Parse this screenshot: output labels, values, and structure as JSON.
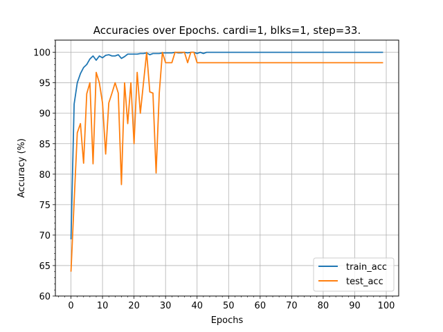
{
  "chart_data": {
    "type": "line",
    "title": "Accuracies over Epochs. cardi=1, blks=1, step=33.",
    "xlabel": "Epochs",
    "ylabel": "Accuracy (%)",
    "xlim": [
      -4.95,
      103.95
    ],
    "ylim": [
      60,
      102
    ],
    "xticks": [
      0,
      10,
      20,
      30,
      40,
      50,
      60,
      70,
      80,
      90,
      100
    ],
    "yticks": [
      60,
      65,
      70,
      75,
      80,
      85,
      90,
      95,
      100
    ],
    "grid": true,
    "legend_position": "lower right",
    "x": [
      0,
      1,
      2,
      3,
      4,
      5,
      6,
      7,
      8,
      9,
      10,
      11,
      12,
      13,
      14,
      15,
      16,
      17,
      18,
      19,
      20,
      21,
      22,
      23,
      24,
      25,
      26,
      27,
      28,
      29,
      30,
      31,
      32,
      33,
      34,
      35,
      36,
      37,
      38,
      39,
      40,
      41,
      42,
      43,
      44,
      45,
      46,
      47,
      48,
      49,
      50,
      51,
      52,
      53,
      54,
      55,
      56,
      57,
      58,
      59,
      60,
      61,
      62,
      63,
      64,
      65,
      66,
      67,
      68,
      69,
      70,
      71,
      72,
      73,
      74,
      75,
      76,
      77,
      78,
      79,
      80,
      81,
      82,
      83,
      84,
      85,
      86,
      87,
      88,
      89,
      90,
      91,
      92,
      93,
      94,
      95,
      96,
      97,
      98,
      99
    ],
    "series": [
      {
        "name": "train_acc",
        "color": "#1f77b4",
        "values": [
          69.3,
          91.5,
          95.0,
          96.5,
          97.5,
          98.0,
          98.9,
          99.4,
          98.7,
          99.4,
          99.1,
          99.5,
          99.6,
          99.4,
          99.4,
          99.6,
          99.0,
          99.3,
          99.7,
          99.7,
          99.7,
          99.7,
          99.8,
          99.8,
          99.9,
          99.6,
          99.8,
          99.8,
          99.8,
          99.9,
          99.9,
          99.9,
          99.9,
          100,
          99.9,
          99.9,
          100,
          99.9,
          100,
          100,
          99.8,
          100,
          99.8,
          100,
          100,
          100,
          100,
          100,
          100,
          100,
          100,
          100,
          100,
          100,
          100,
          100,
          100,
          100,
          100,
          100,
          100,
          100,
          100,
          100,
          100,
          100,
          100,
          100,
          100,
          100,
          100,
          100,
          100,
          100,
          100,
          100,
          100,
          100,
          100,
          100,
          100,
          100,
          100,
          100,
          100,
          100,
          100,
          100,
          100,
          100,
          100,
          100,
          100,
          100,
          100,
          100,
          100,
          100,
          100,
          100
        ]
      },
      {
        "name": "test_acc",
        "color": "#ff7f0e",
        "values": [
          64.0,
          75.5,
          86.8,
          88.3,
          81.8,
          93.2,
          95.0,
          81.7,
          96.7,
          95.0,
          91.7,
          83.3,
          91.7,
          93.3,
          95.0,
          93.3,
          78.3,
          95.0,
          88.3,
          95.0,
          85.0,
          96.7,
          90.0,
          95.0,
          100,
          93.5,
          93.3,
          80.2,
          93.3,
          100,
          98.3,
          98.3,
          98.3,
          100,
          100,
          100,
          100,
          98.3,
          100,
          100,
          98.3,
          98.3,
          98.3,
          98.3,
          98.3,
          98.3,
          98.3,
          98.3,
          98.3,
          98.3,
          98.3,
          98.3,
          98.3,
          98.3,
          98.3,
          98.3,
          98.3,
          98.3,
          98.3,
          98.3,
          98.3,
          98.3,
          98.3,
          98.3,
          98.3,
          98.3,
          98.3,
          98.3,
          98.3,
          98.3,
          98.3,
          98.3,
          98.3,
          98.3,
          98.3,
          98.3,
          98.3,
          98.3,
          98.3,
          98.3,
          98.3,
          98.3,
          98.3,
          98.3,
          98.3,
          98.3,
          98.3,
          98.3,
          98.3,
          98.3,
          98.3,
          98.3,
          98.3,
          98.3,
          98.3,
          98.3,
          98.3,
          98.3,
          98.3,
          98.3
        ]
      }
    ]
  }
}
